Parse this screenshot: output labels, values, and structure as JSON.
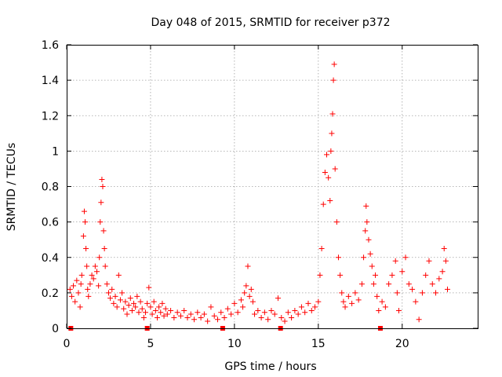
{
  "chart_data": {
    "type": "scatter",
    "title": "Day 048 of 2015, SRMTID for receiver p372",
    "xlabel": "GPS time / hours",
    "ylabel": "SRMTID / TECUs",
    "xlim": [
      0,
      24.5
    ],
    "ylim": [
      0,
      1.6
    ],
    "xticks": [
      0,
      5,
      10,
      15,
      20
    ],
    "xtick_labels": [
      "0",
      "5",
      "10",
      "15",
      "20"
    ],
    "yticks": [
      0,
      0.2,
      0.4,
      0.6,
      0.8,
      1.0,
      1.2,
      1.4,
      1.6
    ],
    "ytick_labels": [
      "0",
      "0.2",
      "0.4",
      "0.6",
      "0.8",
      "1",
      "1.2",
      "1.4",
      "1.6"
    ],
    "grid": true,
    "marker": "plus",
    "color": "#ff0000",
    "series": [
      {
        "name": "SRMTID",
        "points": [
          [
            0.2,
            0.22
          ],
          [
            0.3,
            0.18
          ],
          [
            0.4,
            0.24
          ],
          [
            0.5,
            0.15
          ],
          [
            0.6,
            0.27
          ],
          [
            0.7,
            0.2
          ],
          [
            0.8,
            0.12
          ],
          [
            0.85,
            0.25
          ],
          [
            0.9,
            0.3
          ],
          [
            1.0,
            0.52
          ],
          [
            1.05,
            0.66
          ],
          [
            1.1,
            0.6
          ],
          [
            1.15,
            0.45
          ],
          [
            1.2,
            0.35
          ],
          [
            1.25,
            0.22
          ],
          [
            1.3,
            0.18
          ],
          [
            1.4,
            0.25
          ],
          [
            1.5,
            0.3
          ],
          [
            1.6,
            0.28
          ],
          [
            1.7,
            0.35
          ],
          [
            1.8,
            0.32
          ],
          [
            1.9,
            0.24
          ],
          [
            1.95,
            0.4
          ],
          [
            2.0,
            0.6
          ],
          [
            2.05,
            0.71
          ],
          [
            2.1,
            0.84
          ],
          [
            2.15,
            0.8
          ],
          [
            2.2,
            0.55
          ],
          [
            2.25,
            0.45
          ],
          [
            2.3,
            0.35
          ],
          [
            2.4,
            0.25
          ],
          [
            2.5,
            0.2
          ],
          [
            2.6,
            0.17
          ],
          [
            2.7,
            0.22
          ],
          [
            2.8,
            0.14
          ],
          [
            2.9,
            0.18
          ],
          [
            3.0,
            0.12
          ],
          [
            3.1,
            0.3
          ],
          [
            3.2,
            0.16
          ],
          [
            3.3,
            0.2
          ],
          [
            3.4,
            0.11
          ],
          [
            3.5,
            0.15
          ],
          [
            3.6,
            0.08
          ],
          [
            3.7,
            0.13
          ],
          [
            3.8,
            0.17
          ],
          [
            3.9,
            0.1
          ],
          [
            4.0,
            0.14
          ],
          [
            4.1,
            0.12
          ],
          [
            4.2,
            0.18
          ],
          [
            4.3,
            0.09
          ],
          [
            4.4,
            0.15
          ],
          [
            4.5,
            0.11
          ],
          [
            4.6,
            0.06
          ],
          [
            4.7,
            0.09
          ],
          [
            4.8,
            0.14
          ],
          [
            4.9,
            0.23
          ],
          [
            5.0,
            0.12
          ],
          [
            5.1,
            0.08
          ],
          [
            5.2,
            0.15
          ],
          [
            5.3,
            0.1
          ],
          [
            5.4,
            0.06
          ],
          [
            5.5,
            0.12
          ],
          [
            5.6,
            0.09
          ],
          [
            5.7,
            0.14
          ],
          [
            5.8,
            0.07
          ],
          [
            5.9,
            0.11
          ],
          [
            6.0,
            0.08
          ],
          [
            6.2,
            0.1
          ],
          [
            6.4,
            0.06
          ],
          [
            6.6,
            0.09
          ],
          [
            6.8,
            0.07
          ],
          [
            7.0,
            0.1
          ],
          [
            7.2,
            0.06
          ],
          [
            7.4,
            0.08
          ],
          [
            7.6,
            0.05
          ],
          [
            7.8,
            0.09
          ],
          [
            8.0,
            0.06
          ],
          [
            8.2,
            0.08
          ],
          [
            8.4,
            0.04
          ],
          [
            8.6,
            0.12
          ],
          [
            8.8,
            0.07
          ],
          [
            9.0,
            0.05
          ],
          [
            9.2,
            0.09
          ],
          [
            9.4,
            0.06
          ],
          [
            9.6,
            0.11
          ],
          [
            9.8,
            0.08
          ],
          [
            10.0,
            0.14
          ],
          [
            10.2,
            0.09
          ],
          [
            10.4,
            0.16
          ],
          [
            10.5,
            0.12
          ],
          [
            10.6,
            0.2
          ],
          [
            10.7,
            0.24
          ],
          [
            10.8,
            0.35
          ],
          [
            10.9,
            0.18
          ],
          [
            11.0,
            0.22
          ],
          [
            11.1,
            0.15
          ],
          [
            11.2,
            0.08
          ],
          [
            11.4,
            0.1
          ],
          [
            11.6,
            0.06
          ],
          [
            11.8,
            0.09
          ],
          [
            12.0,
            0.05
          ],
          [
            12.2,
            0.1
          ],
          [
            12.4,
            0.08
          ],
          [
            12.6,
            0.17
          ],
          [
            12.8,
            0.06
          ],
          [
            13.0,
            0.04
          ],
          [
            13.2,
            0.09
          ],
          [
            13.4,
            0.06
          ],
          [
            13.6,
            0.1
          ],
          [
            13.8,
            0.08
          ],
          [
            14.0,
            0.12
          ],
          [
            14.2,
            0.09
          ],
          [
            14.4,
            0.14
          ],
          [
            14.6,
            0.1
          ],
          [
            14.8,
            0.12
          ],
          [
            15.0,
            0.15
          ],
          [
            15.1,
            0.3
          ],
          [
            15.2,
            0.45
          ],
          [
            15.3,
            0.7
          ],
          [
            15.4,
            0.88
          ],
          [
            15.5,
            0.98
          ],
          [
            15.6,
            0.85
          ],
          [
            15.7,
            0.72
          ],
          [
            15.75,
            1.0
          ],
          [
            15.8,
            1.1
          ],
          [
            15.85,
            1.21
          ],
          [
            15.9,
            1.4
          ],
          [
            15.95,
            1.49
          ],
          [
            16.0,
            0.9
          ],
          [
            16.1,
            0.6
          ],
          [
            16.2,
            0.4
          ],
          [
            16.3,
            0.3
          ],
          [
            16.4,
            0.2
          ],
          [
            16.5,
            0.15
          ],
          [
            16.6,
            0.12
          ],
          [
            16.8,
            0.18
          ],
          [
            17.0,
            0.14
          ],
          [
            17.2,
            0.2
          ],
          [
            17.4,
            0.16
          ],
          [
            17.6,
            0.25
          ],
          [
            17.7,
            0.4
          ],
          [
            17.8,
            0.55
          ],
          [
            17.85,
            0.69
          ],
          [
            17.9,
            0.6
          ],
          [
            18.0,
            0.5
          ],
          [
            18.1,
            0.42
          ],
          [
            18.2,
            0.35
          ],
          [
            18.3,
            0.25
          ],
          [
            18.4,
            0.3
          ],
          [
            18.5,
            0.18
          ],
          [
            18.6,
            0.1
          ],
          [
            18.8,
            0.15
          ],
          [
            19.0,
            0.12
          ],
          [
            19.2,
            0.25
          ],
          [
            19.4,
            0.3
          ],
          [
            19.6,
            0.38
          ],
          [
            19.7,
            0.2
          ],
          [
            19.8,
            0.1
          ],
          [
            20.0,
            0.32
          ],
          [
            20.2,
            0.4
          ],
          [
            20.4,
            0.25
          ],
          [
            20.6,
            0.22
          ],
          [
            20.8,
            0.15
          ],
          [
            21.0,
            0.05
          ],
          [
            21.2,
            0.2
          ],
          [
            21.4,
            0.3
          ],
          [
            21.6,
            0.38
          ],
          [
            21.8,
            0.25
          ],
          [
            22.0,
            0.2
          ],
          [
            22.2,
            0.28
          ],
          [
            22.4,
            0.32
          ],
          [
            22.5,
            0.45
          ],
          [
            22.6,
            0.38
          ],
          [
            22.7,
            0.22
          ]
        ]
      }
    ],
    "axis_markers": [
      0.25,
      4.8,
      9.3,
      12.75,
      18.7
    ]
  }
}
